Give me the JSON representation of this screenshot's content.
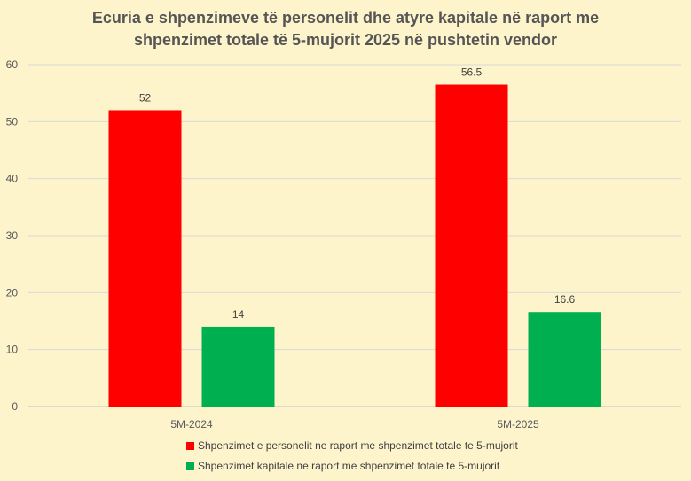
{
  "chart_data": {
    "type": "bar",
    "title_lines": [
      "Ecuria e shpenzimeve të personelit dhe atyre kapitale në raport me",
      "shpenzimet totale të 5-mujorit  2025 në pushtetin vendor"
    ],
    "categories": [
      "5M-2024",
      "5M-2025"
    ],
    "series": [
      {
        "name": "Shpenzimet e personelit ne raport me shpenzimet totale te 5-mujorit",
        "color": "#ff0000",
        "values": [
          52,
          56.5
        ],
        "labels": [
          "52",
          "56.5"
        ]
      },
      {
        "name": "Shpenzimet kapitale ne raport me shpenzimet totale te 5-mujorit",
        "color": "#00b050",
        "values": [
          14,
          16.6
        ],
        "labels": [
          "14",
          "16.6"
        ]
      }
    ],
    "ylim": [
      0,
      60
    ],
    "yticks": [
      0,
      10,
      20,
      30,
      40,
      50,
      60
    ],
    "ytick_labels": [
      "0",
      "10",
      "20",
      "30",
      "40",
      "50",
      "60"
    ],
    "grid": true,
    "legend_position": "bottom"
  }
}
